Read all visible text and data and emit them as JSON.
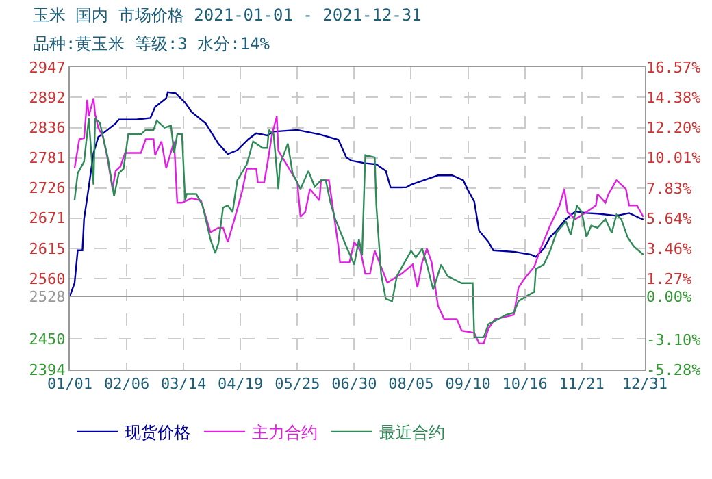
{
  "chart_data": {
    "type": "line",
    "title": "玉米 国内 市场价格 2021-01-01 - 2021-12-31",
    "subtitle": "品种:黄玉米 等级:3 水分:14%",
    "xlim": [
      "2021-01-01",
      "2021-12-31"
    ],
    "xticks": [
      {
        "value": "2021-01-01",
        "label": "01/01"
      },
      {
        "value": "2021-02-06",
        "label": "02/06"
      },
      {
        "value": "2021-03-14",
        "label": "03/14"
      },
      {
        "value": "2021-04-19",
        "label": "04/19"
      },
      {
        "value": "2021-05-25",
        "label": "05/25"
      },
      {
        "value": "2021-06-30",
        "label": "06/30"
      },
      {
        "value": "2021-08-05",
        "label": "08/05"
      },
      {
        "value": "2021-09-10",
        "label": "09/10"
      },
      {
        "value": "2021-10-16",
        "label": "10/16"
      },
      {
        "value": "2021-11-21",
        "label": "11/21"
      },
      {
        "value": "2021-12-31",
        "label": "12/31"
      }
    ],
    "ylim": [
      2394,
      2947
    ],
    "yticks": [
      2394,
      2450,
      2528,
      2560,
      2615,
      2671,
      2726,
      2781,
      2836,
      2892,
      2947
    ],
    "y2lim": [
      -5.28,
      16.57
    ],
    "y2ticks": [
      {
        "value": -5.28,
        "label": "-5.28%"
      },
      {
        "value": -3.1,
        "label": "-3.10%"
      },
      {
        "value": 0,
        "label": "0.00%"
      },
      {
        "value": 1.27,
        "label": "1.27%"
      },
      {
        "value": 3.46,
        "label": "3.46%"
      },
      {
        "value": 5.64,
        "label": "5.64%"
      },
      {
        "value": 7.83,
        "label": "7.83%"
      },
      {
        "value": 10.01,
        "label": "10.01%"
      },
      {
        "value": 12.2,
        "label": "12.20%"
      },
      {
        "value": 14.38,
        "label": "14.38%"
      },
      {
        "value": 16.57,
        "label": "16.57%"
      }
    ],
    "ref_lines": [
      {
        "axis": "y",
        "value": 2528,
        "color": "#999999"
      }
    ],
    "grid": true,
    "legend": "bottom",
    "marker": "none",
    "line_style": "solid",
    "series": [
      {
        "name": "现货价格",
        "color": "#0000a0",
        "x": [
          "2021-01-01",
          "2021-01-04",
          "2021-01-06",
          "2021-01-09",
          "2021-01-10",
          "2021-01-13",
          "2021-01-16",
          "2021-01-19",
          "2021-01-23",
          "2021-01-30",
          "2021-02-01",
          "2021-02-12",
          "2021-02-21",
          "2021-02-24",
          "2021-03-03",
          "2021-03-04",
          "2021-03-09",
          "2021-03-15",
          "2021-03-19",
          "2021-03-28",
          "2021-04-05",
          "2021-04-11",
          "2021-04-17",
          "2021-04-24",
          "2021-04-29",
          "2021-05-06",
          "2021-05-10",
          "2021-05-25",
          "2021-06-08",
          "2021-06-20",
          "2021-06-25",
          "2021-06-28",
          "2021-07-07",
          "2021-07-14",
          "2021-07-20",
          "2021-07-23",
          "2021-08-02",
          "2021-08-05",
          "2021-08-13",
          "2021-08-22",
          "2021-08-31",
          "2021-09-07",
          "2021-09-10",
          "2021-09-14",
          "2021-09-17",
          "2021-09-23",
          "2021-09-26",
          "2021-10-10",
          "2021-10-20",
          "2021-10-23",
          "2021-10-28",
          "2021-11-01",
          "2021-11-05",
          "2021-11-11",
          "2021-11-17",
          "2021-11-24",
          "2021-12-01",
          "2021-12-13",
          "2021-12-21",
          "2021-12-30"
        ],
        "values": [
          2528,
          2552,
          2612,
          2612,
          2669,
          2728,
          2790,
          2819,
          2828,
          2844,
          2851,
          2851,
          2854,
          2874,
          2890,
          2901,
          2899,
          2882,
          2865,
          2844,
          2807,
          2788,
          2795,
          2815,
          2826,
          2822,
          2829,
          2832,
          2824,
          2814,
          2782,
          2776,
          2771,
          2769,
          2757,
          2727,
          2727,
          2732,
          2740,
          2749,
          2749,
          2740,
          2722,
          2701,
          2648,
          2627,
          2612,
          2609,
          2604,
          2600,
          2615,
          2636,
          2648,
          2669,
          2683,
          2680,
          2679,
          2675,
          2680,
          2668
        ]
      },
      {
        "name": "主力合约",
        "color": "#e020e0",
        "x": [
          "2021-01-04",
          "2021-01-07",
          "2021-01-10",
          "2021-01-12",
          "2021-01-13",
          "2021-01-16",
          "2021-01-17",
          "2021-01-19",
          "2021-01-22",
          "2021-01-25",
          "2021-01-28",
          "2021-01-30",
          "2021-02-02",
          "2021-02-05",
          "2021-02-15",
          "2021-02-18",
          "2021-02-23",
          "2021-02-24",
          "2021-02-28",
          "2021-03-03",
          "2021-03-08",
          "2021-03-10",
          "2021-03-13",
          "2021-03-19",
          "2021-03-25",
          "2021-03-31",
          "2021-04-05",
          "2021-04-08",
          "2021-04-11",
          "2021-04-16",
          "2021-04-20",
          "2021-04-23",
          "2021-04-29",
          "2021-04-30",
          "2021-05-04",
          "2021-05-06",
          "2021-05-09",
          "2021-05-12",
          "2021-05-13",
          "2021-05-19",
          "2021-05-25",
          "2021-05-27",
          "2021-05-30",
          "2021-06-02",
          "2021-06-08",
          "2021-06-09",
          "2021-06-14",
          "2021-06-20",
          "2021-06-21",
          "2021-06-27",
          "2021-06-30",
          "2021-07-04",
          "2021-07-07",
          "2021-07-10",
          "2021-07-13",
          "2021-07-21",
          "2021-07-30",
          "2021-08-06",
          "2021-08-09",
          "2021-08-12",
          "2021-08-15",
          "2021-08-18",
          "2021-08-22",
          "2021-08-26",
          "2021-09-03",
          "2021-09-06",
          "2021-09-14",
          "2021-09-17",
          "2021-09-20",
          "2021-09-23",
          "2021-09-27",
          "2021-10-09",
          "2021-10-12",
          "2021-10-16",
          "2021-10-22",
          "2021-10-26",
          "2021-11-01",
          "2021-11-07",
          "2021-11-10",
          "2021-11-12",
          "2021-11-17",
          "2021-11-23",
          "2021-11-30",
          "2021-12-01",
          "2021-12-06",
          "2021-12-08",
          "2021-12-13",
          "2021-12-19",
          "2021-12-21",
          "2021-12-26",
          "2021-12-30"
        ],
        "values": [
          2762,
          2815,
          2817,
          2887,
          2857,
          2890,
          2861,
          2836,
          2819,
          2778,
          2724,
          2757,
          2765,
          2790,
          2790,
          2815,
          2815,
          2786,
          2811,
          2762,
          2811,
          2699,
          2699,
          2707,
          2703,
          2645,
          2653,
          2653,
          2627,
          2677,
          2719,
          2761,
          2761,
          2736,
          2736,
          2769,
          2824,
          2857,
          2794,
          2765,
          2736,
          2673,
          2682,
          2724,
          2703,
          2740,
          2740,
          2619,
          2590,
          2590,
          2627,
          2611,
          2569,
          2569,
          2611,
          2553,
          2569,
          2586,
          2544,
          2590,
          2615,
          2590,
          2511,
          2486,
          2486,
          2465,
          2461,
          2442,
          2442,
          2469,
          2486,
          2494,
          2544,
          2561,
          2582,
          2615,
          2657,
          2694,
          2724,
          2682,
          2669,
          2680,
          2694,
          2715,
          2699,
          2715,
          2740,
          2724,
          2694,
          2694,
          2673
        ]
      },
      {
        "name": "最近合约",
        "color": "#2e8b57",
        "x": [
          "2021-01-04",
          "2021-01-06",
          "2021-01-10",
          "2021-01-13",
          "2021-01-16",
          "2021-01-17",
          "2021-01-20",
          "2021-01-25",
          "2021-01-29",
          "2021-02-01",
          "2021-02-04",
          "2021-02-07",
          "2021-02-15",
          "2021-02-18",
          "2021-02-23",
          "2021-02-25",
          "2021-03-02",
          "2021-03-06",
          "2021-03-08",
          "2021-03-10",
          "2021-03-13",
          "2021-03-15",
          "2021-03-16",
          "2021-03-22",
          "2021-03-26",
          "2021-03-31",
          "2021-04-03",
          "2021-04-05",
          "2021-04-08",
          "2021-04-11",
          "2021-04-14",
          "2021-04-17",
          "2021-04-23",
          "2021-04-27",
          "2021-05-03",
          "2021-05-06",
          "2021-05-07",
          "2021-05-10",
          "2021-05-13",
          "2021-05-14",
          "2021-05-19",
          "2021-05-22",
          "2021-05-27",
          "2021-06-01",
          "2021-06-05",
          "2021-06-09",
          "2021-06-12",
          "2021-06-15",
          "2021-06-18",
          "2021-06-25",
          "2021-06-30",
          "2021-07-03",
          "2021-07-05",
          "2021-07-07",
          "2021-07-13",
          "2021-07-14",
          "2021-07-17",
          "2021-07-20",
          "2021-07-24",
          "2021-07-27",
          "2021-08-05",
          "2021-08-08",
          "2021-08-12",
          "2021-08-15",
          "2021-08-19",
          "2021-08-24",
          "2021-08-28",
          "2021-09-06",
          "2021-09-13",
          "2021-09-14",
          "2021-09-20",
          "2021-09-23",
          "2021-09-29",
          "2021-10-04",
          "2021-10-09",
          "2021-10-12",
          "2021-10-17",
          "2021-10-22",
          "2021-10-23",
          "2021-10-28",
          "2021-11-01",
          "2021-11-05",
          "2021-11-11",
          "2021-11-14",
          "2021-11-18",
          "2021-11-21",
          "2021-11-24",
          "2021-11-27",
          "2021-12-01",
          "2021-12-06",
          "2021-12-10",
          "2021-12-13",
          "2021-12-16",
          "2021-12-20",
          "2021-12-24",
          "2021-12-30"
        ],
        "values": [
          2704,
          2753,
          2774,
          2853,
          2732,
          2853,
          2845,
          2782,
          2711,
          2753,
          2761,
          2824,
          2824,
          2832,
          2832,
          2849,
          2836,
          2840,
          2790,
          2824,
          2824,
          2703,
          2715,
          2715,
          2694,
          2632,
          2607,
          2624,
          2690,
          2694,
          2682,
          2740,
          2769,
          2811,
          2799,
          2799,
          2832,
          2824,
          2724,
          2769,
          2807,
          2753,
          2724,
          2757,
          2728,
          2740,
          2740,
          2699,
          2669,
          2619,
          2586,
          2632,
          2603,
          2786,
          2782,
          2694,
          2569,
          2523,
          2519,
          2565,
          2611,
          2599,
          2615,
          2586,
          2540,
          2586,
          2565,
          2552,
          2552,
          2453,
          2453,
          2477,
          2486,
          2494,
          2498,
          2519,
          2528,
          2536,
          2578,
          2586,
          2611,
          2644,
          2665,
          2640,
          2694,
          2682,
          2636,
          2657,
          2653,
          2669,
          2644,
          2677,
          2669,
          2636,
          2619,
          2604
        ]
      }
    ]
  }
}
